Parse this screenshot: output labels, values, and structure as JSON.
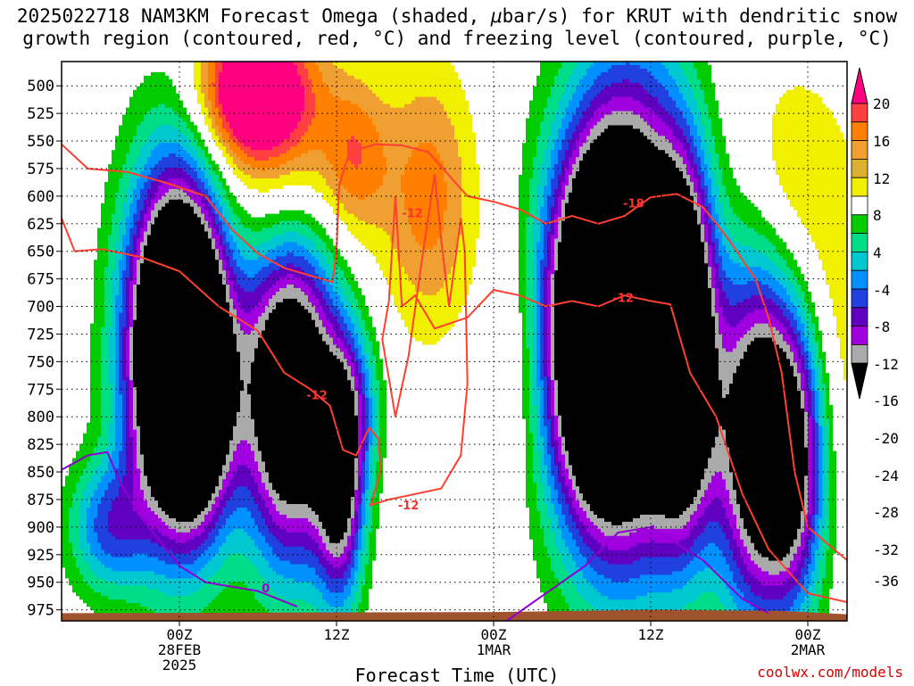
{
  "title": {
    "line1_pre": "2025022718 NAM3KM Forecast Omega (shaded, ",
    "line1_mu": "μ",
    "line1_post": "bar/s) for KRUT with dendritic snow",
    "line2": "growth region (contoured, red, °C) and freezing level (contoured, purple, °C)"
  },
  "credit": "coolwx.com/models",
  "chart_data": {
    "type": "heatmap",
    "title": "2025022718 NAM3KM Forecast Omega (shaded, μbar/s) for KRUT with dendritic snow growth region (contoured, red, °C) and freezing level (contoured, purple, °C)",
    "xlabel": "Forecast Time (UTC)",
    "ylabel": "",
    "x_range_hours": [
      -9,
      51
    ],
    "y_scale": "pressure (mb), increasing downward",
    "ylim": [
      478,
      985
    ],
    "y_ticks": [
      500,
      525,
      550,
      575,
      600,
      625,
      650,
      675,
      700,
      725,
      750,
      775,
      800,
      825,
      850,
      875,
      900,
      925,
      950,
      975
    ],
    "x_ticks": [
      {
        "hour": 0,
        "line1": "00Z",
        "line2": "28FEB",
        "line3": "2025"
      },
      {
        "hour": 12,
        "line1": "12Z",
        "line2": "",
        "line3": ""
      },
      {
        "hour": 24,
        "line1": "00Z",
        "line2": "1MAR",
        "line3": ""
      },
      {
        "hour": 36,
        "line1": "12Z",
        "line2": "",
        "line3": ""
      },
      {
        "hour": 48,
        "line1": "00Z",
        "line2": "2MAR",
        "line3": ""
      }
    ],
    "grid": true,
    "colorbar": {
      "position": "right",
      "labels": [
        "20",
        "16",
        "12",
        "8",
        "4",
        "-4",
        "-8",
        "-12",
        "-16",
        "-20",
        "-24",
        "-28",
        "-32",
        "-36"
      ],
      "bins": [
        {
          "range": ">20",
          "color": "#ff0080"
        },
        {
          "range": "16 to 20",
          "color": "#ff4040"
        },
        {
          "range": "12 to 16",
          "color": "#ff8000"
        },
        {
          "range": "8 to 12",
          "color": "#f0a030"
        },
        {
          "range": "4 to 8",
          "color": "#ddb030"
        },
        {
          "range": "0 to 4",
          "color": "#f0f000"
        },
        {
          "range": "-4 to 4",
          "color": "#ffffff"
        },
        {
          "range": "-8 to -4",
          "color": "#00cc00"
        },
        {
          "range": "-12 to -8",
          "color": "#00dd88"
        },
        {
          "range": "-16 to -12",
          "color": "#00c8d0"
        },
        {
          "range": "-20 to -16",
          "color": "#0090ff"
        },
        {
          "range": "-24 to -20",
          "color": "#2040e0"
        },
        {
          "range": "-28 to -24",
          "color": "#6000c0"
        },
        {
          "range": "-32 to -28",
          "color": "#a000e0"
        },
        {
          "range": "-36 to -32",
          "color": "#aaaaaa"
        },
        {
          "range": "<-36",
          "color": "#000000"
        }
      ]
    },
    "contour_labels": [
      {
        "text": "-12",
        "hour": 10.5,
        "p": 780,
        "color": "#ff3030"
      },
      {
        "text": "-12",
        "hour": 17.5,
        "p": 880,
        "color": "#ff3030"
      },
      {
        "text": "-12",
        "hour": 17.8,
        "p": 615,
        "color": "#ff3030"
      },
      {
        "text": "-12",
        "hour": 33.9,
        "p": 692,
        "color": "#ff3030"
      },
      {
        "text": "-18",
        "hour": 34.7,
        "p": 606,
        "color": "#ff3030"
      },
      {
        "text": "0",
        "hour": 6.6,
        "p": 955,
        "color": "#a000d0"
      }
    ],
    "ground_color": "#a0522d"
  }
}
